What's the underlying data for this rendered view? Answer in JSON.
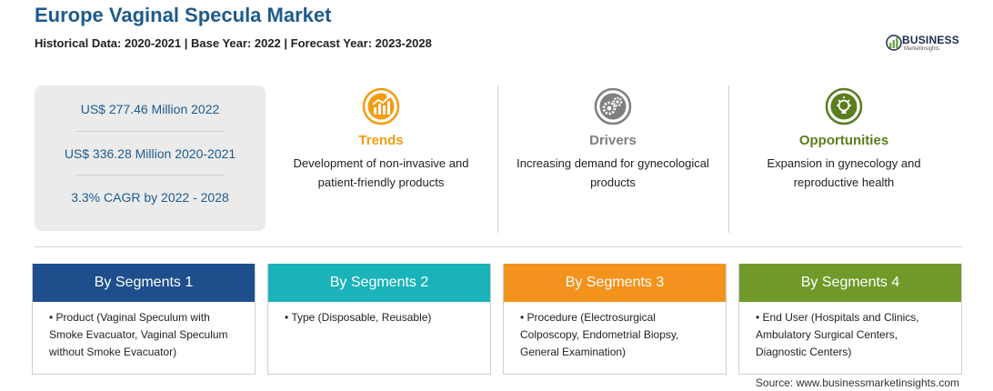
{
  "header": {
    "title": "Europe Vaginal Specula Market",
    "subtitle": "Historical Data: 2020-2021 | Base Year: 2022 | Forecast Year: 2023-2028"
  },
  "logo": {
    "name": "BUSINESS",
    "tagline": "MarketInsights",
    "colors": {
      "navy": "#1b2b4c",
      "green": "#6aa84f"
    }
  },
  "stats": [
    {
      "text": "US$ 277.46 Million 2022"
    },
    {
      "text": "US$ 336.28 Million 2020-2021"
    },
    {
      "text": "3.3% CAGR by 2022 - 2028"
    }
  ],
  "features": [
    {
      "title": "Trends",
      "description": "Development of non-invasive and patient-friendly products",
      "icon": "chart-growth-icon",
      "color": "#f39c12"
    },
    {
      "title": "Drivers",
      "description": "Increasing demand for gynecological products",
      "icon": "gears-icon",
      "color": "#7f7f7f"
    },
    {
      "title": "Opportunities",
      "description": "Expansion in gynecology and reproductive health",
      "icon": "lightbulb-icon",
      "color": "#5a7d1e"
    }
  ],
  "segments": [
    {
      "title": "By Segments 1",
      "bullet": "Product (Vaginal Speculum with Smoke Evacuator, Vaginal Speculum without Smoke Evacuator)",
      "color": "#1e4e8c"
    },
    {
      "title": "By Segments 2",
      "bullet": "Type (Disposable, Reusable)",
      "color": "#19b3b9"
    },
    {
      "title": "By Segments 3",
      "bullet": "Procedure (Electrosurgical Colposcopy, Endometrial Biopsy, General Examination)",
      "color": "#f3931e"
    },
    {
      "title": "By Segments 4",
      "bullet": "End User (Hospitals and Clinics, Ambulatory Surgical Centers, Diagnostic Centers)",
      "color": "#6f9a2a"
    }
  ],
  "source": "Source: www.businessmarketinsights.com"
}
